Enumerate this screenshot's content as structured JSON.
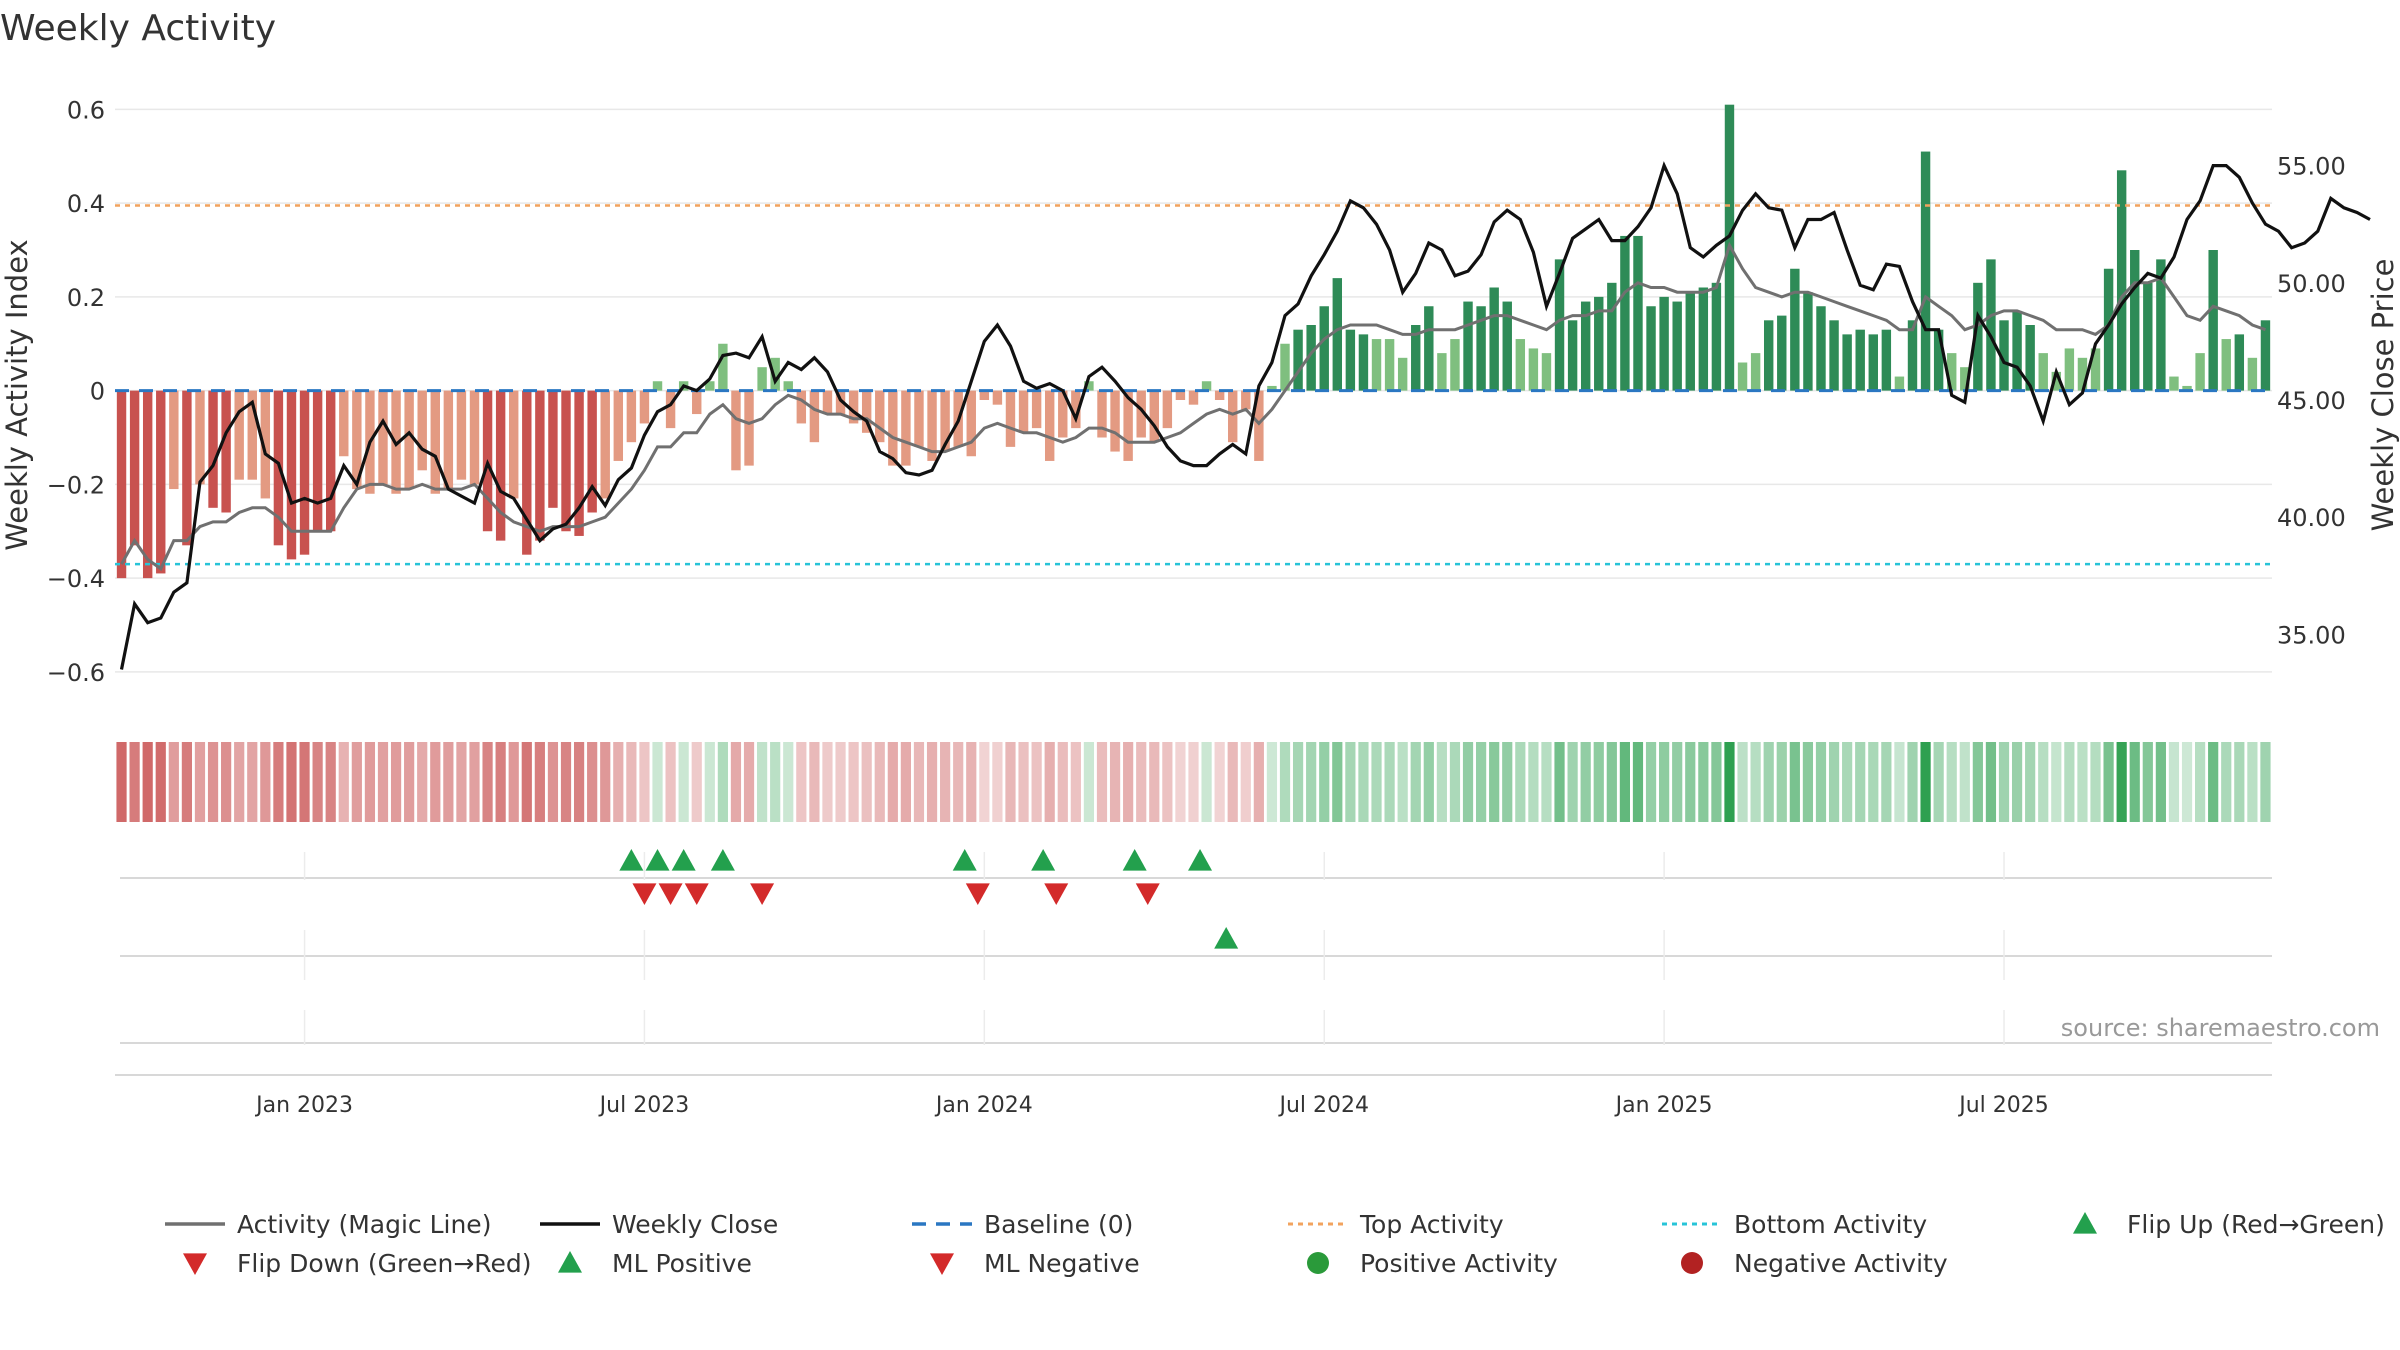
{
  "title": "Weekly Activity",
  "source": "source: sharemaestro.com",
  "colors": {
    "magic_line": "#707070",
    "close": "#111111",
    "baseline": "#2a77c2",
    "top": "#f2a35e",
    "bottom": "#28c4d8",
    "pos_strong": "#2e8b57",
    "pos_weak": "#7fbf7f",
    "neg_strong": "#c8524f",
    "neg_weak": "#e39a82",
    "up": "#23a04d",
    "down": "#d32a2a",
    "grid": "#e8e8e8"
  },
  "chart_data": {
    "type": "bar+line",
    "title": "Weekly Activity",
    "ylabel_left": "Weekly Activity Index",
    "ylabel_right": "Weekly Close Price",
    "y_left_ticks": [
      "0.6",
      "0.4",
      "0.2",
      "0",
      "−0.2",
      "−0.4",
      "−0.6"
    ],
    "y_left_tick_values": [
      0.6,
      0.4,
      0.2,
      0,
      -0.2,
      -0.4,
      -0.6
    ],
    "y_right_ticks": [
      "55.00",
      "50.00",
      "45.00",
      "40.00",
      "35.00"
    ],
    "y_right_tick_values": [
      55,
      50,
      45,
      40,
      35
    ],
    "ylim_left": [
      -0.66,
      0.62
    ],
    "ylim_right": [
      32.2,
      57.8
    ],
    "x_ticks": [
      "Jan 2023",
      "Jul 2023",
      "Jan 2024",
      "Jul 2024",
      "Jan 2025",
      "Jul 2025"
    ],
    "x_tick_weeks": [
      14.5,
      40.5,
      66.5,
      92.5,
      118.5,
      144.5
    ],
    "top_activity": 0.395,
    "bottom_activity": -0.37,
    "baseline": 0,
    "activity": [
      -0.4,
      -0.33,
      -0.4,
      -0.39,
      -0.21,
      -0.33,
      -0.2,
      -0.25,
      -0.26,
      -0.19,
      -0.19,
      -0.23,
      -0.33,
      -0.36,
      -0.35,
      -0.3,
      -0.3,
      -0.14,
      -0.21,
      -0.22,
      -0.2,
      -0.22,
      -0.21,
      -0.17,
      -0.22,
      -0.21,
      -0.19,
      -0.2,
      -0.3,
      -0.32,
      -0.23,
      -0.35,
      -0.32,
      -0.25,
      -0.3,
      -0.31,
      -0.26,
      -0.23,
      -0.15,
      -0.11,
      -0.07,
      0.02,
      -0.08,
      0.02,
      -0.05,
      0.02,
      0.1,
      -0.17,
      -0.16,
      0.05,
      0.07,
      0.02,
      -0.07,
      -0.11,
      -0.05,
      -0.05,
      -0.07,
      -0.09,
      -0.11,
      -0.16,
      -0.16,
      -0.12,
      -0.15,
      -0.13,
      -0.12,
      -0.14,
      -0.02,
      -0.03,
      -0.12,
      -0.09,
      -0.08,
      -0.15,
      -0.1,
      -0.08,
      0.02,
      -0.1,
      -0.13,
      -0.15,
      -0.1,
      -0.11,
      -0.08,
      -0.02,
      -0.03,
      0.02,
      -0.02,
      -0.11,
      -0.04,
      -0.15,
      0.01,
      0.1,
      0.13,
      0.14,
      0.18,
      0.24,
      0.13,
      0.12,
      0.11,
      0.11,
      0.07,
      0.14,
      0.18,
      0.08,
      0.11,
      0.19,
      0.18,
      0.22,
      0.19,
      0.11,
      0.09,
      0.08,
      0.28,
      0.15,
      0.19,
      0.2,
      0.23,
      0.33,
      0.33,
      0.18,
      0.2,
      0.19,
      0.21,
      0.22,
      0.23,
      0.61,
      0.06,
      0.08,
      0.15,
      0.16,
      0.26,
      0.21,
      0.18,
      0.15,
      0.12,
      0.13,
      0.12,
      0.13,
      0.03,
      0.15,
      0.51,
      0.13,
      0.08,
      0.05,
      0.23,
      0.28,
      0.15,
      0.17,
      0.14,
      0.08,
      0.04,
      0.09,
      0.07,
      0.09,
      0.26,
      0.47,
      0.3,
      0.23,
      0.28,
      0.03,
      0.01,
      0.08,
      0.3,
      0.11,
      0.12,
      0.07,
      0.15
    ],
    "magic_line": [
      -0.37,
      -0.32,
      -0.36,
      -0.38,
      -0.32,
      -0.32,
      -0.29,
      -0.28,
      -0.28,
      -0.26,
      -0.25,
      -0.25,
      -0.27,
      -0.3,
      -0.3,
      -0.3,
      -0.3,
      -0.25,
      -0.21,
      -0.2,
      -0.2,
      -0.21,
      -0.21,
      -0.2,
      -0.21,
      -0.21,
      -0.21,
      -0.2,
      -0.23,
      -0.26,
      -0.28,
      -0.29,
      -0.3,
      -0.29,
      -0.29,
      -0.29,
      -0.28,
      -0.27,
      -0.24,
      -0.21,
      -0.17,
      -0.12,
      -0.12,
      -0.09,
      -0.09,
      -0.05,
      -0.03,
      -0.06,
      -0.07,
      -0.06,
      -0.03,
      -0.01,
      -0.02,
      -0.04,
      -0.05,
      -0.05,
      -0.06,
      -0.06,
      -0.08,
      -0.1,
      -0.11,
      -0.12,
      -0.13,
      -0.13,
      -0.12,
      -0.11,
      -0.08,
      -0.07,
      -0.08,
      -0.09,
      -0.09,
      -0.1,
      -0.11,
      -0.1,
      -0.08,
      -0.08,
      -0.09,
      -0.11,
      -0.11,
      -0.11,
      -0.1,
      -0.09,
      -0.07,
      -0.05,
      -0.04,
      -0.05,
      -0.04,
      -0.07,
      -0.04,
      0.0,
      0.04,
      0.08,
      0.11,
      0.13,
      0.14,
      0.14,
      0.14,
      0.13,
      0.12,
      0.12,
      0.13,
      0.13,
      0.13,
      0.14,
      0.15,
      0.16,
      0.16,
      0.15,
      0.14,
      0.13,
      0.15,
      0.16,
      0.16,
      0.17,
      0.17,
      0.21,
      0.23,
      0.22,
      0.22,
      0.21,
      0.21,
      0.21,
      0.22,
      0.31,
      0.26,
      0.22,
      0.21,
      0.2,
      0.21,
      0.21,
      0.2,
      0.19,
      0.18,
      0.17,
      0.16,
      0.15,
      0.13,
      0.13,
      0.2,
      0.18,
      0.16,
      0.13,
      0.14,
      0.16,
      0.17,
      0.17,
      0.16,
      0.15,
      0.13,
      0.13,
      0.13,
      0.12,
      0.14,
      0.2,
      0.23,
      0.23,
      0.24,
      0.2,
      0.16,
      0.15,
      0.18,
      0.17,
      0.16,
      0.14,
      0.13
    ],
    "close": [
      33.5,
      36.3,
      35.5,
      35.7,
      36.8,
      37.2,
      41.5,
      42.2,
      43.6,
      44.5,
      44.9,
      42.7,
      42.3,
      40.6,
      40.8,
      40.6,
      40.8,
      42.2,
      41.4,
      43.2,
      44.1,
      43.1,
      43.6,
      42.9,
      42.6,
      41.2,
      40.9,
      40.6,
      42.3,
      41.1,
      40.8,
      39.9,
      39.0,
      39.5,
      39.7,
      40.4,
      41.3,
      40.5,
      41.6,
      42.1,
      43.5,
      44.5,
      44.8,
      45.6,
      45.4,
      45.9,
      46.9,
      47.0,
      46.8,
      47.7,
      45.8,
      46.6,
      46.3,
      46.8,
      46.2,
      45.0,
      44.5,
      44.1,
      42.8,
      42.5,
      41.9,
      41.8,
      42.0,
      43.1,
      44.1,
      45.8,
      47.5,
      48.2,
      47.3,
      45.8,
      45.5,
      45.7,
      45.4,
      44.2,
      46.0,
      46.4,
      45.8,
      45.1,
      44.6,
      43.9,
      43.0,
      42.4,
      42.2,
      42.2,
      42.7,
      43.1,
      42.7,
      45.6,
      46.6,
      48.6,
      49.1,
      50.3,
      51.2,
      52.2,
      53.5,
      53.2,
      52.5,
      51.4,
      49.6,
      50.4,
      51.7,
      51.4,
      50.3,
      50.5,
      51.2,
      52.6,
      53.1,
      52.7,
      51.3,
      49.0,
      50.4,
      51.9,
      52.3,
      52.7,
      51.8,
      51.8,
      52.4,
      53.2,
      55.0,
      53.8,
      51.5,
      51.1,
      51.6,
      52.0,
      53.1,
      53.8,
      53.2,
      53.1,
      51.5,
      52.7,
      52.7,
      53.0,
      51.4,
      49.9,
      49.7,
      50.8,
      50.7,
      49.2,
      48.0,
      48.0,
      45.2,
      44.9,
      48.6,
      47.7,
      46.6,
      46.4,
      45.6,
      44.1,
      46.2,
      44.8,
      45.3,
      47.4,
      48.2,
      49.1,
      49.8,
      50.4,
      50.2,
      51.1,
      52.7,
      53.5,
      55.0,
      55.0,
      54.5,
      53.4,
      52.5,
      52.2,
      51.5,
      51.7,
      52.2,
      53.6,
      53.2,
      53.0,
      52.7
    ],
    "flips": {
      "row1_up_weeks": [
        39.5,
        41.5,
        43.5,
        46.5,
        65.0,
        71.0,
        78.0,
        83.0
      ],
      "row1_down_weeks": [
        40.5,
        42.5,
        44.5,
        49.5,
        66.0,
        72.0,
        79.0
      ],
      "row2_up_weeks": [
        85.0
      ]
    }
  },
  "legend": {
    "row1": [
      {
        "icon": "line",
        "label": "Activity (Magic Line)"
      },
      {
        "icon": "line-black",
        "label": "Weekly Close"
      },
      {
        "icon": "dash",
        "label": "Baseline (0)"
      },
      {
        "icon": "dot-orange",
        "label": "Top Activity"
      },
      {
        "icon": "dot-cyan",
        "label": "Bottom Activity"
      },
      {
        "icon": "triangle-up",
        "label": "Flip Up (Red→Green)"
      }
    ],
    "row2": [
      {
        "icon": "triangle-down",
        "label": "Flip Down (Green→Red)"
      },
      {
        "icon": "triangle-up",
        "label": "ML Positive"
      },
      {
        "icon": "triangle-down",
        "label": "ML Negative"
      },
      {
        "icon": "circle-green",
        "label": "Positive Activity"
      },
      {
        "icon": "circle-red",
        "label": "Negative Activity"
      }
    ]
  }
}
